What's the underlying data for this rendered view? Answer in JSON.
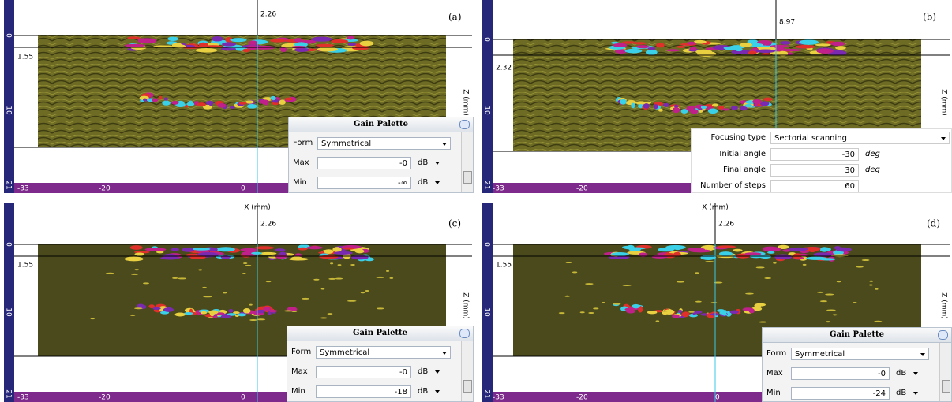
{
  "panels": [
    {
      "label": "(a)",
      "cursor_x": 2.26,
      "cursor_z": 1.55,
      "z_axis_label": "Z (mm)",
      "x_ticks": [
        -33,
        -20,
        0
      ],
      "z_ticks": [
        0,
        10,
        21
      ],
      "gain_palette": {
        "title": "Gain Palette",
        "form_label": "Form",
        "form": "Symmetrical",
        "max_label": "Max",
        "max": "-0",
        "max_unit": "dB",
        "min_label": "Min",
        "min": "-∞",
        "min_unit": "dB"
      }
    },
    {
      "label": "(b)",
      "cursor_x": 8.97,
      "cursor_z": 2.32,
      "z_axis_label": "Z (mm)",
      "x_ticks": [
        -33,
        -20
      ],
      "z_ticks": [
        0,
        10,
        21
      ],
      "focusing": {
        "type_label": "Focusing type",
        "type": "Sectorial scanning",
        "initial_label": "Initial angle",
        "initial": -30,
        "initial_unit": "deg",
        "final_label": "Final angle",
        "final": 30,
        "final_unit": "deg",
        "steps_label": "Number of steps",
        "steps": 60
      }
    },
    {
      "label": "(c)",
      "x_axis_label": "X (mm)",
      "cursor_x": 2.26,
      "cursor_z": 1.55,
      "z_axis_label": "Z (mm)",
      "x_ticks": [
        -33,
        -20,
        0
      ],
      "z_ticks": [
        0,
        10,
        21
      ],
      "gain_palette": {
        "title": "Gain Palette",
        "form_label": "Form",
        "form": "Symmetrical",
        "max_label": "Max",
        "max": "-0",
        "max_unit": "dB",
        "min_label": "Min",
        "min": "-18",
        "min_unit": "dB"
      }
    },
    {
      "label": "(d)",
      "x_axis_label": "X (mm)",
      "cursor_x": 2.26,
      "cursor_z": 1.55,
      "z_axis_label": "Z (mm)",
      "x_ticks": [
        -33,
        -20,
        0
      ],
      "z_ticks": [
        0,
        10,
        21
      ],
      "gain_palette": {
        "title": "Gain Palette",
        "form_label": "Form",
        "form": "Symmetrical",
        "max_label": "Max",
        "max": "-0",
        "max_unit": "dB",
        "min_label": "Min",
        "min": "-24",
        "min_unit": "dB"
      }
    }
  ]
}
